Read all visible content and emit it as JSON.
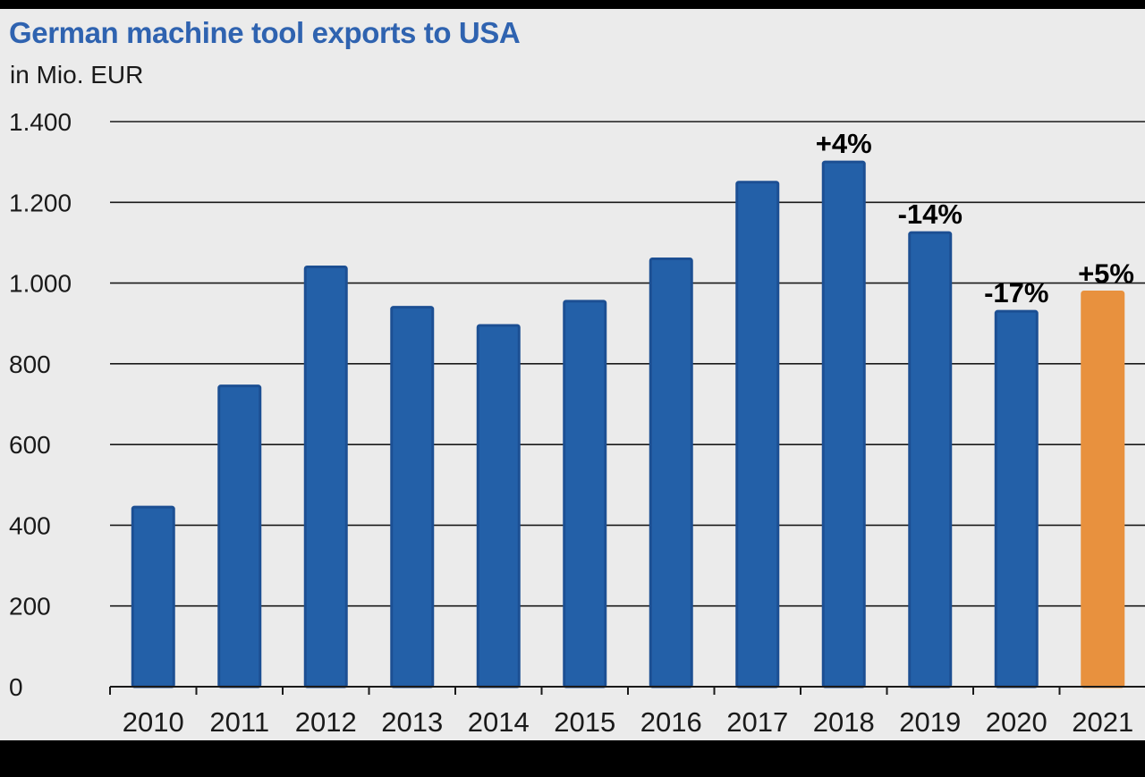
{
  "chart_data": {
    "type": "bar",
    "title": "German machine tool exports to USA",
    "subtitle": "in Mio. EUR",
    "xlabel": "",
    "ylabel": "",
    "categories": [
      "2010",
      "2011",
      "2012",
      "2013",
      "2014",
      "2015",
      "2016",
      "2017",
      "2018",
      "2019",
      "2020",
      "2021"
    ],
    "values": [
      445,
      745,
      1040,
      940,
      895,
      955,
      1060,
      1250,
      1300,
      1125,
      930,
      978
    ],
    "highlight_index": 11,
    "ylim": [
      0,
      1400
    ],
    "yticks": [
      0,
      200,
      400,
      600,
      800,
      1000,
      1200,
      1400
    ],
    "ytick_labels": [
      "0",
      "200",
      "400",
      "600",
      "800",
      "1.000",
      "1.200",
      "1.400"
    ],
    "grid": true,
    "annotations": [
      {
        "category": "2018",
        "text": "+4%"
      },
      {
        "category": "2019",
        "text": "-14%"
      },
      {
        "category": "2020",
        "text": "-17%"
      },
      {
        "category": "2021",
        "text": "+5%"
      }
    ],
    "colors": {
      "bar": "#2360a8",
      "bar_edge": "#1c4f93",
      "highlight": "#e8913e",
      "title": "#2f63b0",
      "background": "#ebebeb"
    }
  }
}
